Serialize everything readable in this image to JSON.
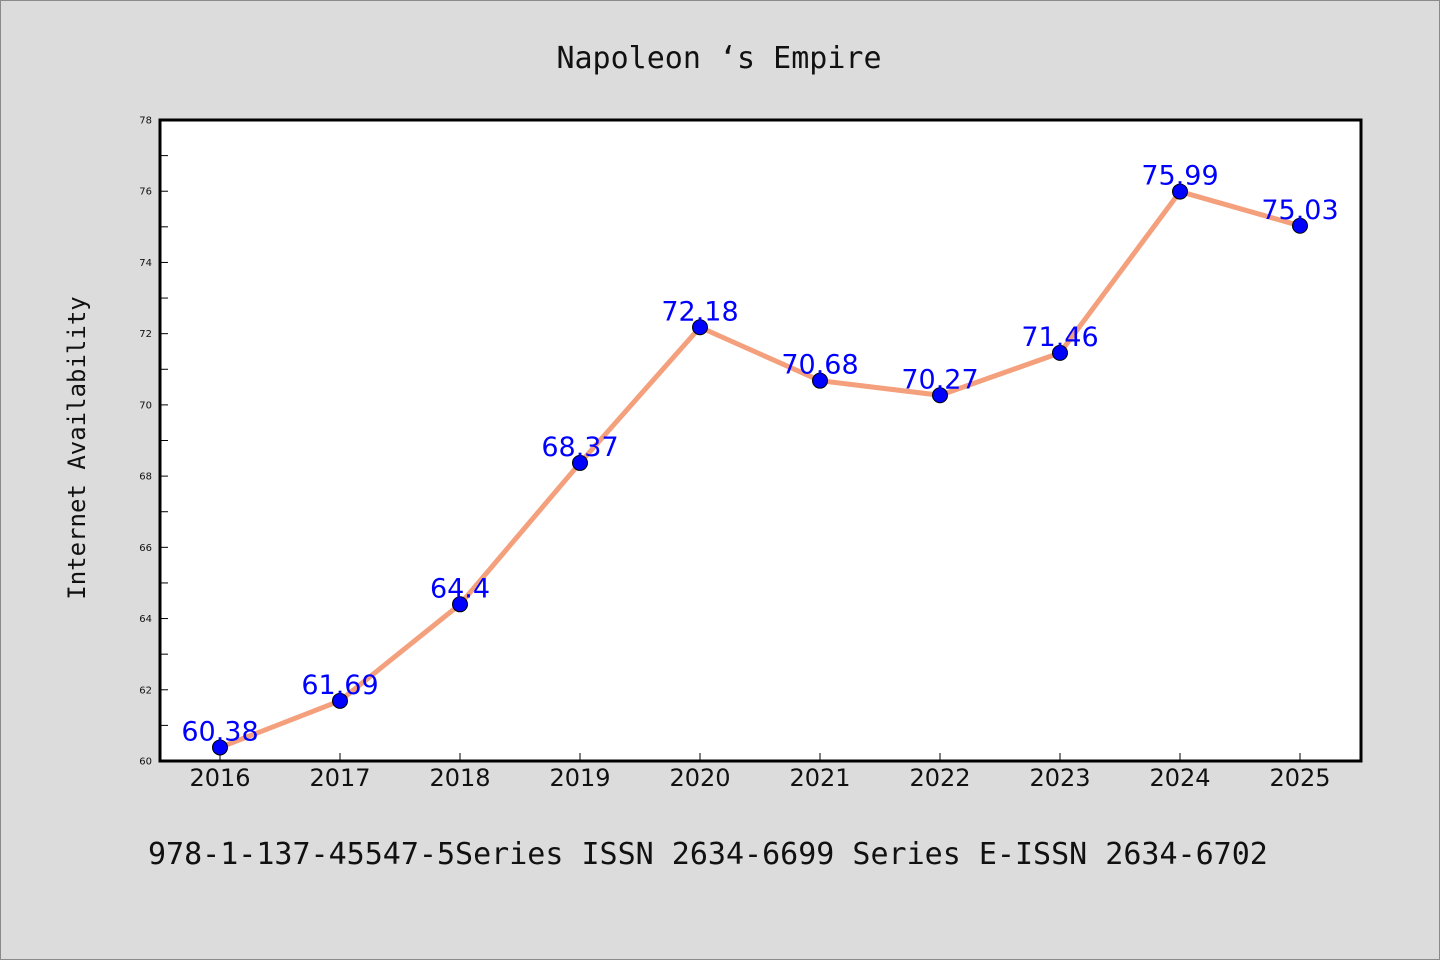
{
  "colors": {
    "background": "#dcdcdc",
    "plot_background": "#ffffff",
    "line": "#f4a07c",
    "marker": "#0000ff",
    "data_label": "#0000ff",
    "axis": "#000000"
  },
  "footer_text": "978-1-137-45547-5Series ISSN 2634-6699 Series E-ISSN 2634-6702",
  "chart_data": {
    "type": "line",
    "title": "Napoleon ‘s Empire",
    "xlabel": "",
    "ylabel": "Internet Availability",
    "categories": [
      "2016",
      "2017",
      "2018",
      "2019",
      "2020",
      "2021",
      "2022",
      "2023",
      "2024",
      "2025"
    ],
    "series": [
      {
        "values": [
          60.38,
          61.69,
          64.4,
          68.37,
          72.18,
          70.68,
          70.27,
          71.46,
          75.99,
          75.03
        ]
      }
    ],
    "data_labels": [
      "60.38",
      "61.69",
      "64.4",
      "68.37",
      "72.18",
      "70.68",
      "70.27",
      "71.46",
      "75.99",
      "75.03"
    ],
    "ylim": [
      60,
      78
    ],
    "yticks": [
      60,
      62,
      64,
      66,
      68,
      70,
      72,
      74,
      76,
      78
    ],
    "grid": false,
    "legend": "none"
  }
}
